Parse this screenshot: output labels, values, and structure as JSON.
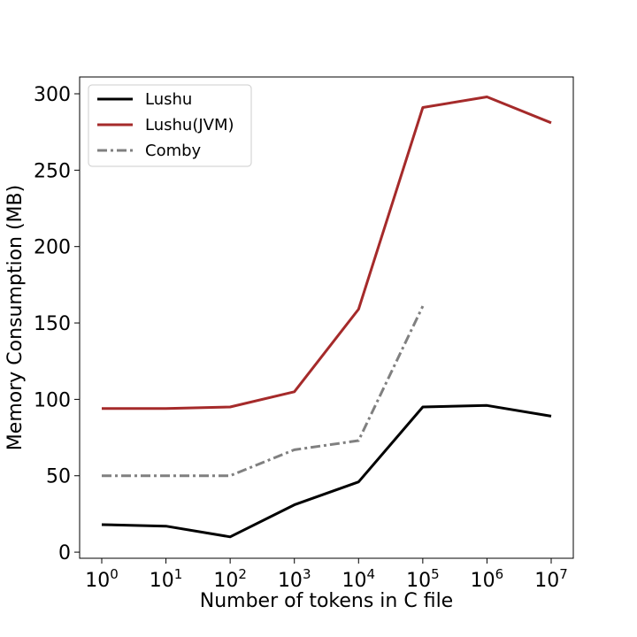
{
  "chart_data": {
    "type": "line",
    "title": "",
    "xlabel": "Number of tokens in C file",
    "ylabel": "Memory Consumption (MB)",
    "x_scale": "log",
    "x": [
      1,
      10,
      100,
      1000,
      10000,
      100000,
      1000000,
      10000000
    ],
    "x_tick_base": "10",
    "x_tick_exponents": [
      "0",
      "1",
      "2",
      "3",
      "4",
      "5",
      "6",
      "7"
    ],
    "y_ticks": [
      0,
      50,
      100,
      150,
      200,
      250,
      300
    ],
    "ylim": [
      -4,
      311
    ],
    "grid": false,
    "legend_position": "top-left",
    "series": [
      {
        "name": "Lushu",
        "color": "#000000",
        "dash": "solid",
        "values": [
          18,
          17,
          10,
          31,
          46,
          95,
          96,
          89
        ]
      },
      {
        "name": "Lushu(JVM)",
        "color": "#a52a2a",
        "dash": "solid",
        "values": [
          94,
          94,
          95,
          105,
          159,
          291,
          298,
          281
        ]
      },
      {
        "name": "Comby",
        "color": "#808080",
        "dash": "dashdot",
        "values": [
          50,
          50,
          50,
          67,
          73,
          161,
          null,
          null
        ]
      }
    ]
  }
}
